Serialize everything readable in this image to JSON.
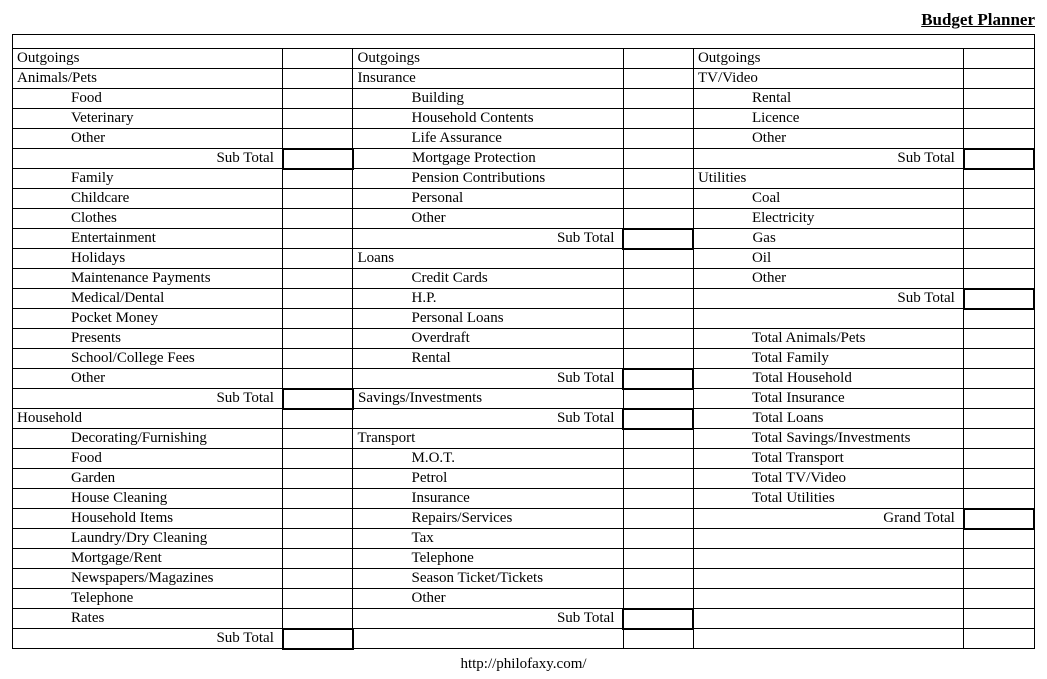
{
  "title": "Budget Planner",
  "footer": "http://philofaxy.com/",
  "columns": {
    "label_pct": 27,
    "value_pct": 7
  },
  "col1": [
    {
      "t": "header",
      "text": "Outgoings"
    },
    {
      "t": "header",
      "text": "Animals/Pets"
    },
    {
      "t": "item",
      "text": "Food"
    },
    {
      "t": "item",
      "text": "Veterinary"
    },
    {
      "t": "item",
      "text": "Other"
    },
    {
      "t": "subtotal",
      "text": "Sub Total"
    },
    {
      "t": "item",
      "text": "Family"
    },
    {
      "t": "item",
      "text": "Childcare"
    },
    {
      "t": "item",
      "text": "Clothes"
    },
    {
      "t": "item",
      "text": "Entertainment"
    },
    {
      "t": "item",
      "text": "Holidays"
    },
    {
      "t": "item",
      "text": "Maintenance Payments"
    },
    {
      "t": "item",
      "text": "Medical/Dental"
    },
    {
      "t": "item",
      "text": "Pocket Money"
    },
    {
      "t": "item",
      "text": "Presents"
    },
    {
      "t": "item",
      "text": "School/College Fees"
    },
    {
      "t": "item",
      "text": "Other"
    },
    {
      "t": "subtotal",
      "text": "Sub Total"
    },
    {
      "t": "header",
      "text": "Household"
    },
    {
      "t": "item",
      "text": "Decorating/Furnishing"
    },
    {
      "t": "item",
      "text": "Food"
    },
    {
      "t": "item",
      "text": "Garden"
    },
    {
      "t": "item",
      "text": "House Cleaning"
    },
    {
      "t": "item",
      "text": "Household Items"
    },
    {
      "t": "item",
      "text": "Laundry/Dry Cleaning"
    },
    {
      "t": "item",
      "text": "Mortgage/Rent"
    },
    {
      "t": "item",
      "text": "Newspapers/Magazines"
    },
    {
      "t": "item",
      "text": "Telephone"
    },
    {
      "t": "item",
      "text": "Rates"
    },
    {
      "t": "subtotal",
      "text": "Sub Total"
    }
  ],
  "col2": [
    {
      "t": "header",
      "text": "Outgoings"
    },
    {
      "t": "header",
      "text": "Insurance"
    },
    {
      "t": "item",
      "text": "Building"
    },
    {
      "t": "item",
      "text": "Household Contents"
    },
    {
      "t": "item",
      "text": "Life Assurance"
    },
    {
      "t": "item",
      "text": "Mortgage Protection"
    },
    {
      "t": "item",
      "text": "Pension Contributions"
    },
    {
      "t": "item",
      "text": "Personal"
    },
    {
      "t": "item",
      "text": "Other"
    },
    {
      "t": "subtotal",
      "text": "Sub Total"
    },
    {
      "t": "header",
      "text": "Loans"
    },
    {
      "t": "item",
      "text": "Credit Cards"
    },
    {
      "t": "item",
      "text": "H.P."
    },
    {
      "t": "item",
      "text": "Personal Loans"
    },
    {
      "t": "item",
      "text": "Overdraft"
    },
    {
      "t": "item",
      "text": "Rental"
    },
    {
      "t": "subtotal",
      "text": "Sub Total"
    },
    {
      "t": "header",
      "text": "Savings/Investments"
    },
    {
      "t": "subtotal",
      "text": "Sub Total"
    },
    {
      "t": "header",
      "text": "Transport"
    },
    {
      "t": "item",
      "text": "M.O.T."
    },
    {
      "t": "item",
      "text": "Petrol"
    },
    {
      "t": "item",
      "text": "Insurance"
    },
    {
      "t": "item",
      "text": "Repairs/Services"
    },
    {
      "t": "item",
      "text": "Tax"
    },
    {
      "t": "item",
      "text": "Telephone"
    },
    {
      "t": "item",
      "text": "Season Ticket/Tickets"
    },
    {
      "t": "item",
      "text": "Other"
    },
    {
      "t": "subtotal",
      "text": "Sub Total"
    },
    {
      "t": "blank"
    }
  ],
  "col3": [
    {
      "t": "header",
      "text": "Outgoings"
    },
    {
      "t": "header",
      "text": "TV/Video"
    },
    {
      "t": "item",
      "text": "Rental"
    },
    {
      "t": "item",
      "text": "Licence"
    },
    {
      "t": "item",
      "text": "Other"
    },
    {
      "t": "subtotal",
      "text": "Sub Total"
    },
    {
      "t": "header",
      "text": "Utilities"
    },
    {
      "t": "item",
      "text": "Coal"
    },
    {
      "t": "item",
      "text": "Electricity"
    },
    {
      "t": "item",
      "text": "Gas"
    },
    {
      "t": "item",
      "text": "Oil"
    },
    {
      "t": "item",
      "text": "Other"
    },
    {
      "t": "subtotal",
      "text": "Sub Total"
    },
    {
      "t": "blank"
    },
    {
      "t": "item",
      "text": "Total Animals/Pets"
    },
    {
      "t": "item",
      "text": "Total Family"
    },
    {
      "t": "item",
      "text": "Total Household"
    },
    {
      "t": "item",
      "text": "Total Insurance"
    },
    {
      "t": "item",
      "text": "Total Loans"
    },
    {
      "t": "item",
      "text": "Total Savings/Investments"
    },
    {
      "t": "item",
      "text": "Total Transport"
    },
    {
      "t": "item",
      "text": "Total TV/Video"
    },
    {
      "t": "item",
      "text": "Total Utilities"
    },
    {
      "t": "subtotal",
      "text": "Grand Total"
    },
    {
      "t": "blank"
    },
    {
      "t": "blank"
    },
    {
      "t": "blank"
    },
    {
      "t": "blank"
    },
    {
      "t": "blank"
    },
    {
      "t": "blank"
    }
  ]
}
